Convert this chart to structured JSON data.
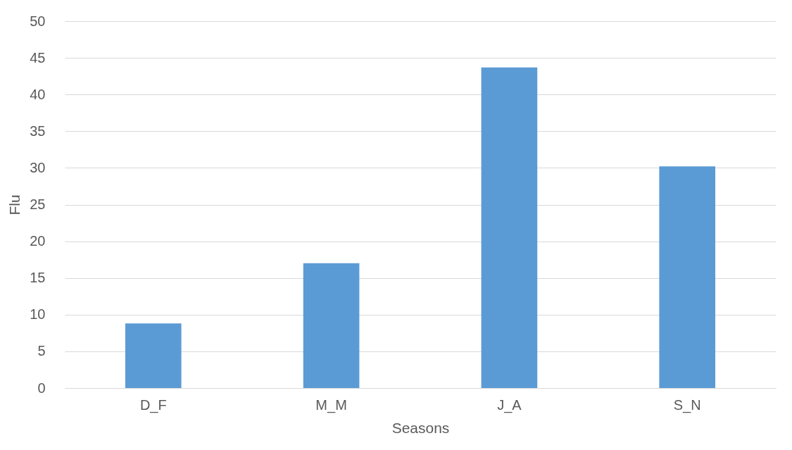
{
  "chart_data": {
    "type": "bar",
    "xlabel": "Seasons",
    "ylabel": "Flu",
    "categories": [
      "D_F",
      "M_M",
      "J_A",
      "S_N"
    ],
    "values": [
      8.8,
      17.0,
      43.7,
      30.2
    ],
    "color": "#5b9bd5",
    "ylim": [
      0,
      50
    ],
    "yticks": [
      0,
      5,
      10,
      15,
      20,
      25,
      30,
      35,
      40,
      45,
      50
    ],
    "grid": "y"
  }
}
